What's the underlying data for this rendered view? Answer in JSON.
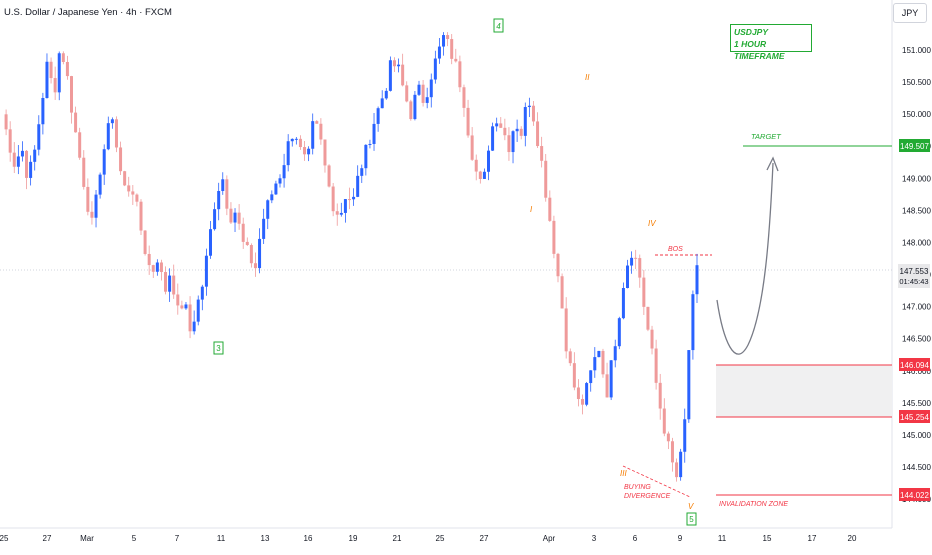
{
  "header": {
    "title": "U.S. Dollar / Japanese Yen · 4h · FXCM",
    "currency": "JPY"
  },
  "annotations": {
    "timeframe_line1": "USDJPY",
    "timeframe_line2": "1 HOUR TIMEFRAME",
    "target": "TARGET",
    "bos": "BOS",
    "buying_line1": "BUYING",
    "buying_line2": "DIVERGENCE",
    "invalidation": "INVALIDATION ZONE",
    "wave_labels": [
      "3",
      "4",
      "5"
    ],
    "sub_waves": [
      "I",
      "II",
      "III",
      "IV",
      "V"
    ]
  },
  "price_badges": {
    "target": "149.507",
    "last_price": "147.553",
    "countdown": "01:45:43",
    "zone_top": "146.094",
    "zone_bottom": "145.254",
    "invalidation": "144.022"
  },
  "colors": {
    "up": "#2962ff",
    "down": "#ef9a9a",
    "target": "#22aa33",
    "zone": "#f23645",
    "annotation": "#f57c00",
    "projection": "#787b86"
  },
  "chart_data": {
    "type": "candlestick",
    "y_axis_ticks": [
      "151.000",
      "150.500",
      "150.000",
      "149.500",
      "149.000",
      "148.500",
      "148.000",
      "147.500",
      "147.000",
      "146.500",
      "146.000",
      "145.500",
      "145.000",
      "144.500",
      "144.000"
    ],
    "ylim": [
      143.7,
      151.4
    ],
    "x_axis_ticks": [
      "25",
      "27",
      "Mar",
      "5",
      "7",
      "11",
      "13",
      "16",
      "19",
      "21",
      "25",
      "27",
      "Apr",
      "3",
      "6",
      "9",
      "11",
      "15",
      "17",
      "20"
    ],
    "key_levels": {
      "target": 149.507,
      "zone_top": 146.094,
      "zone_bottom": 145.254,
      "invalidation": 144.022,
      "bos": 147.75,
      "last": 147.553
    },
    "wave_points": [
      146.55,
      151.35,
      144.1
    ],
    "path": [
      150.0,
      149.6,
      149.2,
      149.5,
      149.0,
      149.4,
      150.1,
      150.8,
      150.3,
      151.1,
      150.6,
      149.9,
      149.3,
      148.7,
      148.2,
      149.1,
      149.6,
      150.0,
      149.2,
      148.8,
      148.9,
      148.4,
      147.9,
      147.5,
      147.8,
      147.2,
      147.6,
      146.9,
      147.1,
      146.6,
      147.0,
      147.4,
      148.1,
      148.8,
      149.0,
      148.4,
      148.5,
      148.0,
      147.8,
      147.6,
      148.3,
      148.6,
      148.9,
      149.1,
      149.5,
      149.8,
      149.4,
      149.2,
      149.9,
      149.6,
      149.0,
      148.6,
      148.4,
      148.8,
      148.6,
      149.1,
      149.4,
      149.8,
      150.1,
      150.4,
      150.8,
      150.7,
      150.3,
      150.0,
      150.4,
      150.2,
      150.6,
      150.9,
      151.2,
      151.0,
      150.7,
      150.3,
      149.6,
      149.1,
      148.8,
      149.6,
      150.0,
      149.8,
      149.5,
      149.9,
      149.7,
      150.3,
      149.9,
      149.3,
      148.6,
      147.9,
      147.2,
      146.3,
      145.8,
      145.4,
      145.7,
      146.1,
      146.4,
      145.6,
      146.2,
      146.9,
      147.6,
      147.9,
      147.6,
      146.9,
      146.3,
      145.6,
      145.1,
      144.6,
      144.3,
      145.0,
      146.8,
      147.55
    ]
  }
}
